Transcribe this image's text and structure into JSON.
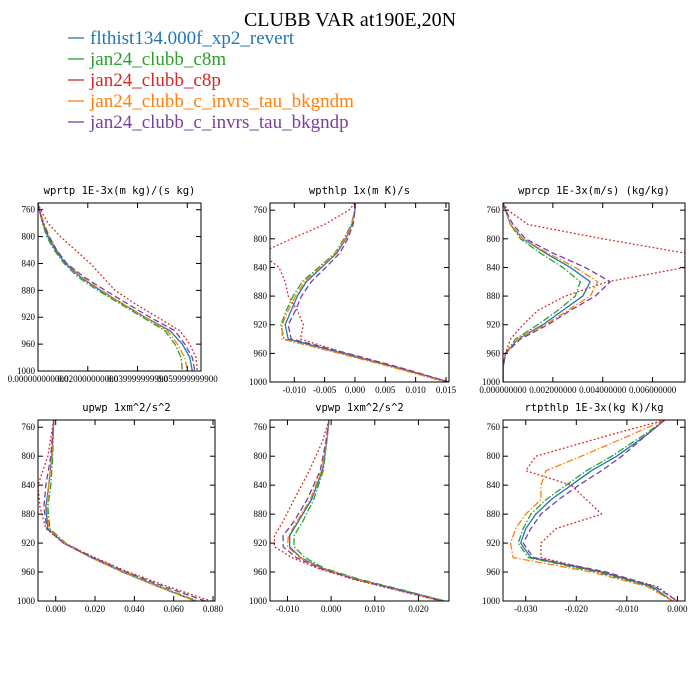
{
  "title": "CLUBB VAR at190E,20N",
  "legend": [
    {
      "label": "flthist134.000f_xp2_revert",
      "color": "#1f77b4",
      "dash": "solid"
    },
    {
      "label": "jan24_clubb_c8m",
      "color": "#2ca02c",
      "dash": "dashdot"
    },
    {
      "label": "jan24_clubb_c8p",
      "color": "#d62728",
      "dash": "dot"
    },
    {
      "label": "jan24_clubb_c_invrs_tau_bkgndm",
      "color": "#ff7f0e",
      "dash": "dashdot"
    },
    {
      "label": "jan24_clubb_c_invrs_tau_bkgndp",
      "color": "#7a3fa0",
      "dash": "dash"
    }
  ],
  "chart_data": [
    {
      "type": "line",
      "title": "wprtp  1E-3x(m kg)/(s kg)",
      "ylim": [
        1000,
        750
      ],
      "yticks": [
        760,
        800,
        840,
        880,
        920,
        960,
        1000
      ],
      "xlim": [
        0.0,
        0.0655
      ],
      "xticks": [
        0.0,
        0.02,
        0.04,
        0.06
      ],
      "xticklabels": [
        "0.000000000000",
        "0.020000000000",
        "0.039999999990",
        "0.059999999900"
      ],
      "y": [
        750,
        760,
        780,
        800,
        820,
        840,
        860,
        880,
        900,
        920,
        940,
        960,
        980,
        1000
      ],
      "series": [
        {
          "values": [
            0.0,
            0.0005,
            0.002,
            0.004,
            0.007,
            0.011,
            0.017,
            0.025,
            0.034,
            0.043,
            0.053,
            0.058,
            0.061,
            0.062
          ]
        },
        {
          "values": [
            0.0,
            0.0005,
            0.0018,
            0.0035,
            0.0065,
            0.0105,
            0.016,
            0.024,
            0.033,
            0.042,
            0.051,
            0.055,
            0.0575,
            0.058
          ]
        },
        {
          "values": [
            0.0,
            0.001,
            0.004,
            0.009,
            0.015,
            0.021,
            0.026,
            0.031,
            0.039,
            0.048,
            0.057,
            0.061,
            0.0635,
            0.064
          ]
        },
        {
          "values": [
            0.0,
            0.0005,
            0.0025,
            0.0045,
            0.0075,
            0.0115,
            0.0175,
            0.0255,
            0.034,
            0.043,
            0.052,
            0.056,
            0.059,
            0.06
          ]
        },
        {
          "values": [
            0.0,
            0.0005,
            0.002,
            0.0045,
            0.0075,
            0.0115,
            0.0185,
            0.027,
            0.036,
            0.045,
            0.055,
            0.059,
            0.062,
            0.063
          ]
        }
      ]
    },
    {
      "type": "line",
      "title": "wpthlp  1x(m K)/s",
      "ylim": [
        1000,
        750
      ],
      "yticks": [
        760,
        800,
        840,
        880,
        920,
        960,
        1000
      ],
      "xlim": [
        -0.014,
        0.0155
      ],
      "xticks": [
        -0.01,
        -0.005,
        0.0,
        0.005,
        0.01,
        0.015
      ],
      "xticklabels": [
        "-0.010",
        "-0.005",
        "0.000",
        "0.005",
        "0.010",
        "0.015"
      ],
      "y": [
        750,
        760,
        780,
        800,
        820,
        840,
        860,
        880,
        900,
        920,
        940,
        960,
        980,
        1000
      ],
      "series": [
        {
          "values": [
            0.0,
            0.0,
            -0.0005,
            -0.0015,
            -0.003,
            -0.0055,
            -0.008,
            -0.0095,
            -0.0105,
            -0.0115,
            -0.011,
            -0.002,
            0.007,
            0.0155
          ]
        },
        {
          "values": [
            0.0,
            0.0,
            -0.0006,
            -0.0018,
            -0.0033,
            -0.006,
            -0.0087,
            -0.0102,
            -0.0113,
            -0.0122,
            -0.0117,
            -0.0025,
            0.0065,
            0.015
          ]
        },
        {
          "values": [
            0.0,
            -0.001,
            -0.005,
            -0.0105,
            -0.0155,
            -0.0125,
            -0.0115,
            -0.011,
            -0.0095,
            -0.0085,
            -0.009,
            -0.0015,
            0.007,
            0.0155
          ]
        },
        {
          "values": [
            0.0,
            0.0,
            -0.0005,
            -0.0016,
            -0.0032,
            -0.0058,
            -0.0083,
            -0.0098,
            -0.011,
            -0.012,
            -0.012,
            -0.0025,
            0.0065,
            0.015
          ]
        },
        {
          "values": [
            0.0,
            0.0,
            -0.0003,
            -0.0012,
            -0.0025,
            -0.0048,
            -0.0072,
            -0.0088,
            -0.0098,
            -0.011,
            -0.0105,
            -0.0012,
            0.0075,
            0.0155
          ]
        }
      ]
    },
    {
      "type": "line",
      "title": "wprcp  1E-3x(m/s) (kg/kg)",
      "ylim": [
        1000,
        750
      ],
      "yticks": [
        760,
        800,
        840,
        880,
        920,
        960,
        1000
      ],
      "xlim": [
        0.0,
        0.0073
      ],
      "xticks": [
        0.0,
        0.002,
        0.004,
        0.006
      ],
      "xticklabels": [
        "0.000000000",
        "0.002000000",
        "0.004000000",
        "0.006000000"
      ],
      "y": [
        750,
        760,
        780,
        800,
        820,
        840,
        860,
        880,
        900,
        920,
        940,
        960,
        980,
        1000
      ],
      "series": [
        {
          "values": [
            0.0,
            0.0001,
            0.0003,
            0.0008,
            0.0017,
            0.0027,
            0.0035,
            0.0032,
            0.0024,
            0.0016,
            0.0006,
            0.0001,
            0.0,
            0.0
          ]
        },
        {
          "values": [
            0.0,
            0.0001,
            0.0003,
            0.0007,
            0.0015,
            0.0024,
            0.0031,
            0.0029,
            0.0022,
            0.0014,
            0.0005,
            0.0001,
            0.0,
            0.0
          ]
        },
        {
          "values": [
            0.0,
            0.0002,
            0.001,
            0.004,
            0.0073,
            0.0073,
            0.0042,
            0.0025,
            0.0014,
            0.0008,
            0.0003,
            0.0001,
            0.0,
            0.0
          ]
        },
        {
          "values": [
            0.0,
            0.0001,
            0.0003,
            0.0008,
            0.0018,
            0.0029,
            0.0038,
            0.0035,
            0.0026,
            0.0017,
            0.0006,
            0.0001,
            0.0,
            0.0
          ]
        },
        {
          "values": [
            0.0,
            0.0001,
            0.0004,
            0.0009,
            0.002,
            0.0033,
            0.0043,
            0.0037,
            0.0027,
            0.0018,
            0.0007,
            0.0001,
            0.0,
            0.0
          ]
        }
      ]
    },
    {
      "type": "line",
      "title": "upwp  1xm^2/s^2",
      "ylim": [
        1000,
        750
      ],
      "yticks": [
        760,
        800,
        840,
        880,
        920,
        960,
        1000
      ],
      "xlim": [
        -0.009,
        0.081
      ],
      "xticks": [
        0.0,
        0.02,
        0.04,
        0.06,
        0.08
      ],
      "xticklabels": [
        "0.000",
        "0.020",
        "0.040",
        "0.060",
        "0.080"
      ],
      "y": [
        750,
        800,
        840,
        870,
        900,
        920,
        940,
        960,
        980,
        1000
      ],
      "series": [
        {
          "values": [
            -0.001,
            -0.002,
            -0.0035,
            -0.005,
            -0.004,
            0.004,
            0.018,
            0.034,
            0.052,
            0.071
          ]
        },
        {
          "values": [
            -0.001,
            -0.0015,
            -0.0025,
            -0.004,
            -0.003,
            0.005,
            0.019,
            0.035,
            0.053,
            0.072
          ]
        },
        {
          "values": [
            -0.001,
            -0.004,
            -0.009,
            -0.008,
            -0.005,
            0.004,
            0.02,
            0.037,
            0.057,
            0.079
          ]
        },
        {
          "values": [
            -0.001,
            -0.002,
            -0.0035,
            -0.0045,
            -0.0035,
            0.0045,
            0.018,
            0.034,
            0.052,
            0.071
          ]
        },
        {
          "values": [
            -0.001,
            -0.0025,
            -0.005,
            -0.006,
            -0.0045,
            0.004,
            0.019,
            0.036,
            0.055,
            0.076
          ]
        }
      ]
    },
    {
      "type": "line",
      "title": "vpwp  1xm^2/s^2",
      "ylim": [
        1000,
        750
      ],
      "yticks": [
        760,
        800,
        840,
        880,
        920,
        960,
        1000
      ],
      "xlim": [
        -0.014,
        0.027
      ],
      "xticks": [
        -0.01,
        0.0,
        0.01,
        0.02
      ],
      "xticklabels": [
        "-0.010",
        "0.000",
        "0.010",
        "0.020"
      ],
      "y": [
        750,
        780,
        820,
        860,
        890,
        910,
        925,
        940,
        955,
        970,
        985,
        1000
      ],
      "series": [
        {
          "values": [
            -0.0005,
            -0.001,
            -0.002,
            -0.0045,
            -0.0075,
            -0.0095,
            -0.0095,
            -0.007,
            -0.002,
            0.006,
            0.016,
            0.026
          ]
        },
        {
          "values": [
            -0.0005,
            -0.001,
            -0.0018,
            -0.004,
            -0.0065,
            -0.0085,
            -0.0085,
            -0.006,
            -0.0015,
            0.0065,
            0.0165,
            0.026
          ]
        },
        {
          "values": [
            -0.0005,
            -0.002,
            -0.005,
            -0.0085,
            -0.011,
            -0.013,
            -0.013,
            -0.009,
            -0.003,
            0.005,
            0.015,
            0.025
          ]
        },
        {
          "values": [
            -0.0005,
            -0.001,
            -0.0022,
            -0.0048,
            -0.0078,
            -0.0098,
            -0.01,
            -0.0072,
            -0.0022,
            0.006,
            0.0155,
            0.0255
          ]
        },
        {
          "values": [
            -0.0005,
            -0.0012,
            -0.0025,
            -0.0055,
            -0.0085,
            -0.011,
            -0.011,
            -0.008,
            -0.0025,
            0.0055,
            0.0155,
            0.0255
          ]
        }
      ]
    },
    {
      "type": "line",
      "title": "rtpthlp  1E-3x(kg K)/kg",
      "ylim": [
        1000,
        750
      ],
      "yticks": [
        760,
        800,
        840,
        880,
        920,
        960,
        1000
      ],
      "xlim": [
        -0.0345,
        0.0015
      ],
      "xticks": [
        -0.03,
        -0.02,
        -0.01,
        0.0
      ],
      "xticklabels": [
        "-0.030",
        "-0.020",
        "-0.010",
        "0.000"
      ],
      "y": [
        750,
        770,
        800,
        820,
        840,
        860,
        880,
        900,
        920,
        940,
        960,
        980,
        1000
      ],
      "series": [
        {
          "values": [
            -0.0025,
            -0.006,
            -0.012,
            -0.017,
            -0.021,
            -0.025,
            -0.028,
            -0.03,
            -0.031,
            -0.029,
            -0.015,
            -0.005,
            -0.001
          ]
        },
        {
          "values": [
            -0.0025,
            -0.0065,
            -0.013,
            -0.018,
            -0.022,
            -0.026,
            -0.029,
            -0.0305,
            -0.0315,
            -0.0295,
            -0.016,
            -0.0055,
            -0.001
          ]
        },
        {
          "values": [
            -0.0025,
            -0.013,
            -0.028,
            -0.03,
            -0.021,
            -0.018,
            -0.015,
            -0.024,
            -0.027,
            -0.027,
            -0.015,
            -0.004,
            0.0
          ]
        },
        {
          "values": [
            -0.0025,
            -0.009,
            -0.019,
            -0.026,
            -0.027,
            -0.027,
            -0.03,
            -0.032,
            -0.033,
            -0.0325,
            -0.017,
            -0.006,
            -0.001
          ]
        },
        {
          "values": [
            -0.0025,
            -0.006,
            -0.011,
            -0.015,
            -0.0195,
            -0.0235,
            -0.027,
            -0.029,
            -0.0305,
            -0.0285,
            -0.014,
            -0.0045,
            0.0
          ]
        }
      ]
    }
  ]
}
